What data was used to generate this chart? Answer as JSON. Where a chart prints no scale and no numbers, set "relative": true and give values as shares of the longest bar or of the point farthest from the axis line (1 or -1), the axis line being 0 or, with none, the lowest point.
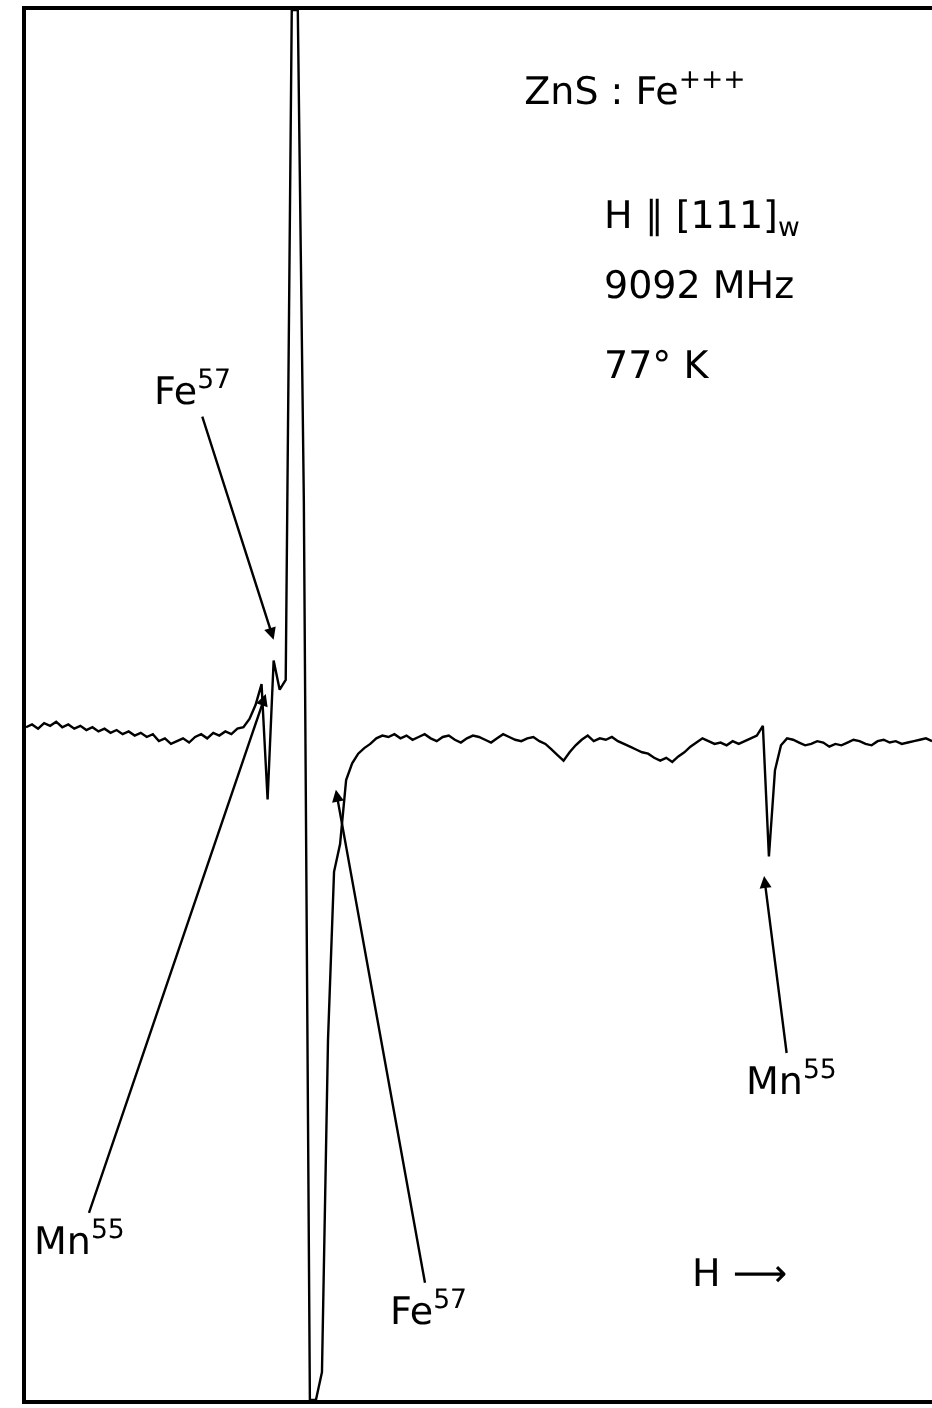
{
  "chart_data": {
    "type": "line",
    "relative": true,
    "title": "ZnS : Fe$^{+++}$",
    "xlabel": "H ⟶",
    "annotations": [
      "H ∥ [111]$_{w}$",
      "9092 MHz",
      "77° K",
      "Fe$^{57}$",
      "Mn$^{55}$",
      "Fe$^{57}$",
      "Mn$^{55}$"
    ],
    "categories": [
      null,
      null,
      null,
      null,
      null,
      null,
      null,
      null,
      null,
      null,
      null,
      null,
      null,
      null,
      null,
      null,
      null,
      null,
      null,
      null,
      null,
      null,
      null,
      null,
      null,
      null,
      null,
      null,
      null,
      null,
      null,
      null,
      null,
      null,
      null,
      null,
      null,
      null,
      null,
      null,
      null,
      null,
      null,
      null,
      null,
      null,
      null,
      null,
      null,
      null,
      null,
      null,
      null,
      null,
      null,
      null,
      null,
      null,
      null,
      null,
      null,
      null,
      null,
      null,
      null,
      null,
      null,
      null,
      null,
      null,
      null,
      null,
      null,
      null,
      null,
      null,
      null,
      null,
      null,
      null,
      null,
      null,
      null,
      null,
      null,
      null,
      null,
      null,
      null,
      null,
      null,
      null,
      null,
      null,
      null,
      null,
      null,
      null,
      null,
      null,
      null,
      null,
      null,
      null,
      null,
      null,
      null,
      null,
      null,
      null,
      null,
      null,
      null,
      null,
      null,
      null,
      null,
      null,
      null,
      null,
      null,
      null,
      null,
      null,
      null,
      null,
      null,
      null,
      null,
      null,
      null,
      null,
      null,
      null,
      null,
      null,
      null,
      null,
      null,
      null,
      null,
      null,
      null,
      null,
      null,
      null,
      null,
      null,
      null,
      null,
      null
    ],
    "series": [
      {
        "color": "#000000",
        "values": [
          0.484,
          0.486,
          0.483,
          0.487,
          0.485,
          0.488,
          0.484,
          0.486,
          0.483,
          0.485,
          0.482,
          0.484,
          0.481,
          0.483,
          0.48,
          0.482,
          0.479,
          0.481,
          0.478,
          0.48,
          0.477,
          0.479,
          0.474,
          0.476,
          0.472,
          0.474,
          0.476,
          0.473,
          0.477,
          0.479,
          0.476,
          0.48,
          0.478,
          0.481,
          0.479,
          0.483,
          0.484,
          0.49,
          0.5,
          0.515,
          0.432,
          0.532,
          0.511,
          0.518,
          1,
          1,
          0.647,
          0,
          0,
          0.02,
          0.259,
          0.38,
          0.4,
          0.446,
          0.458,
          0.465,
          0.469,
          0.472,
          0.476,
          0.478,
          0.477,
          0.479,
          0.476,
          0.478,
          0.475,
          0.477,
          0.479,
          0.476,
          0.474,
          0.477,
          0.478,
          0.475,
          0.473,
          0.476,
          0.478,
          0.477,
          0.475,
          0.473,
          0.476,
          0.479,
          0.477,
          0.475,
          0.474,
          0.476,
          0.477,
          0.474,
          0.472,
          0.468,
          0.464,
          0.46,
          0.466,
          0.471,
          0.475,
          0.478,
          0.474,
          0.476,
          0.475,
          0.477,
          0.474,
          0.472,
          0.47,
          0.468,
          0.466,
          0.465,
          0.462,
          0.46,
          0.462,
          0.459,
          0.463,
          0.466,
          0.47,
          0.473,
          0.476,
          0.474,
          0.472,
          0.473,
          0.471,
          0.474,
          0.472,
          0.474,
          0.476,
          0.478,
          0.485,
          0.391,
          0.453,
          0.471,
          0.476,
          0.475,
          0.473,
          0.471,
          0.472,
          0.474,
          0.473,
          0.47,
          0.472,
          0.471,
          0.473,
          0.475,
          0.474,
          0.472,
          0.471,
          0.474,
          0.475,
          0.473,
          0.474,
          0.472,
          0.473,
          0.474,
          0.475,
          0.476,
          0.474
        ]
      }
    ]
  }
}
